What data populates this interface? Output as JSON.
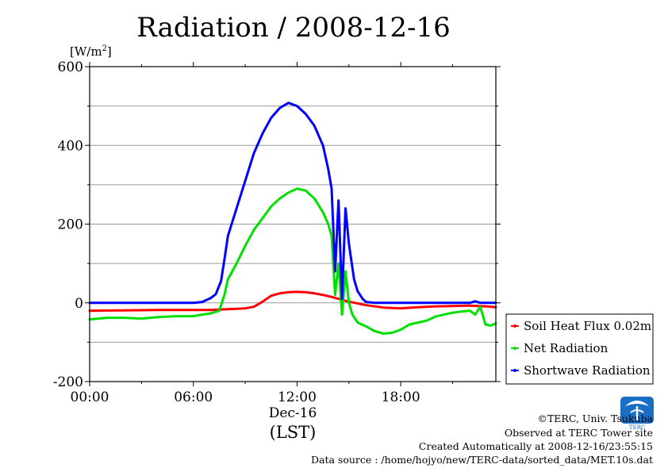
{
  "chart_data": {
    "type": "line",
    "title": "Radiation / 2008-12-16",
    "ylabel_unit": "[W/m",
    "ylabel_unit_sup": "2",
    "ylabel_unit_close": "]",
    "ylim": [
      -200,
      600
    ],
    "yticks": [
      {
        "value": -200,
        "label": "-200"
      },
      {
        "value": 0,
        "label": "0"
      },
      {
        "value": 200,
        "label": "200"
      },
      {
        "value": 400,
        "label": "400"
      },
      {
        "value": 600,
        "label": "600"
      }
    ],
    "yminor": [
      -100,
      100,
      300,
      500
    ],
    "xlim": [
      0,
      23.5
    ],
    "xticks": [
      {
        "value": 0,
        "label": "00:00"
      },
      {
        "value": 6,
        "label": "06:00"
      },
      {
        "value": 12,
        "label": "12:00"
      },
      {
        "value": 18,
        "label": "18:00"
      }
    ],
    "x_date_label": "Dec-16",
    "x_tz_label": "(LST)",
    "grid": true,
    "legend_position": "right",
    "series": [
      {
        "name": "Soil Heat Flux 0.02m",
        "color": "#ff0000",
        "x": [
          0,
          2,
          4,
          6,
          7,
          8,
          9,
          9.5,
          10,
          10.5,
          11,
          11.5,
          12,
          12.5,
          13,
          13.5,
          14,
          14.5,
          15,
          16,
          17,
          18,
          19,
          20,
          21,
          22,
          23,
          23.5
        ],
        "y": [
          -20,
          -19,
          -18,
          -18,
          -18,
          -16,
          -14,
          -10,
          3,
          18,
          24,
          27,
          28,
          27,
          24,
          20,
          15,
          9,
          3,
          -6,
          -12,
          -14,
          -11,
          -9,
          -8,
          -7,
          -9,
          -11
        ]
      },
      {
        "name": "Net Radiation",
        "color": "#00e000",
        "x": [
          0,
          1,
          2,
          3,
          4,
          5,
          6,
          6.5,
          7,
          7.5,
          7.8,
          8,
          8.5,
          9,
          9.5,
          10,
          10.5,
          11,
          11.5,
          12,
          12.5,
          13,
          13.5,
          13.8,
          14,
          14.2,
          14.4,
          14.6,
          14.8,
          15,
          15.2,
          15.5,
          16,
          16.5,
          17,
          17.5,
          18,
          18.5,
          19,
          19.5,
          20,
          20.5,
          21,
          21.5,
          22,
          22.3,
          22.6,
          22.9,
          23.2,
          23.5
        ],
        "y": [
          -42,
          -38,
          -38,
          -40,
          -36,
          -34,
          -34,
          -30,
          -27,
          -20,
          20,
          60,
          100,
          145,
          185,
          215,
          245,
          265,
          280,
          290,
          285,
          265,
          230,
          200,
          170,
          20,
          100,
          -30,
          80,
          0,
          -30,
          -50,
          -60,
          -72,
          -78,
          -76,
          -68,
          -55,
          -50,
          -45,
          -35,
          -30,
          -25,
          -22,
          -20,
          -30,
          -10,
          -55,
          -58,
          -52
        ]
      },
      {
        "name": "Shortwave Radiation",
        "color": "#0000ff",
        "x": [
          0,
          2,
          4,
          6,
          6.5,
          7,
          7.3,
          7.6,
          7.8,
          8,
          8.5,
          9,
          9.5,
          10,
          10.5,
          11,
          11.5,
          12,
          12.5,
          13,
          13.5,
          13.8,
          14,
          14.2,
          14.4,
          14.6,
          14.8,
          15,
          15.3,
          15.5,
          15.8,
          16,
          16.5,
          17,
          18,
          19,
          20,
          21,
          22,
          22.3,
          22.6,
          23,
          23.5
        ],
        "y": [
          0,
          0,
          0,
          0,
          2,
          12,
          22,
          55,
          110,
          170,
          240,
          310,
          380,
          430,
          470,
          495,
          508,
          500,
          480,
          450,
          400,
          340,
          290,
          80,
          260,
          10,
          240,
          150,
          60,
          30,
          10,
          2,
          0,
          0,
          0,
          0,
          0,
          0,
          0,
          4,
          0,
          0,
          0
        ]
      }
    ]
  },
  "footer": {
    "logo_text": "TERC",
    "copyright": "©TERC, Univ. Tsukuba",
    "site": "Observed at TERC Tower site",
    "created": "Created Automatically at 2008-12-16/23:55:15",
    "source": "Data source : /home/hojyo/new/TERC-data/sorted_data/MET.10s.dat"
  }
}
